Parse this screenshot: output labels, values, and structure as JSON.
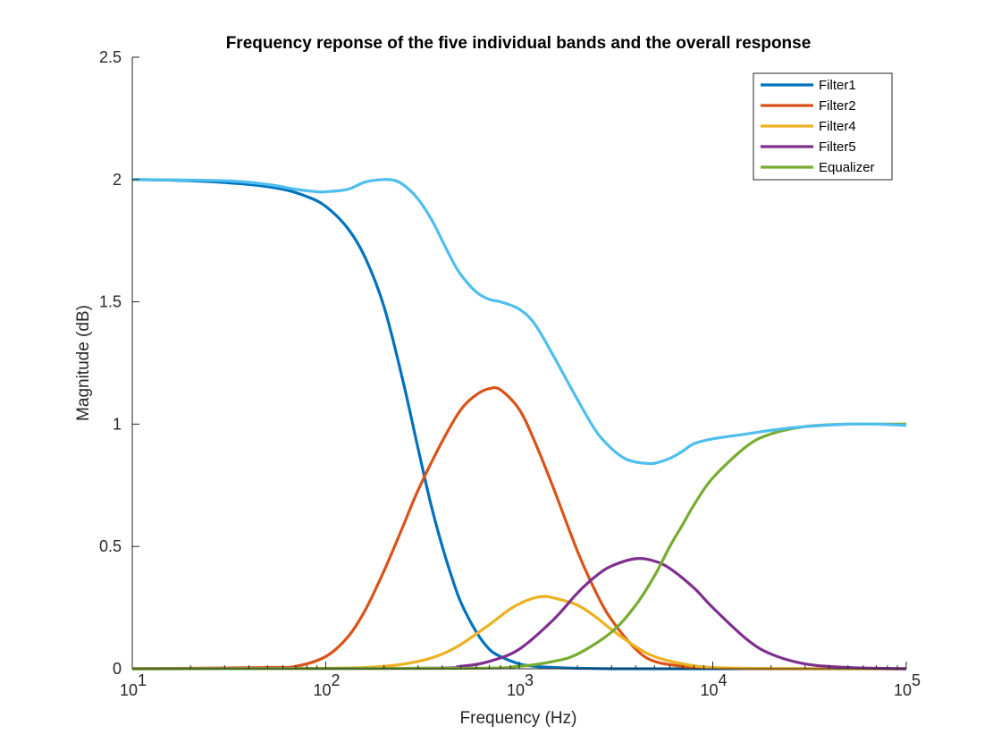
{
  "chart_data": {
    "type": "line",
    "title": "Frequency reponse of the five individual bands and the overall response",
    "xlabel": "Frequency (Hz)",
    "ylabel": "Magnitude (dB)",
    "xscale": "log",
    "xlim": [
      10,
      100000
    ],
    "ylim": [
      0,
      2.5
    ],
    "xticks": [
      10,
      100,
      1000,
      10000,
      100000
    ],
    "xtick_labels": [
      {
        "base": "10",
        "exp": "1"
      },
      {
        "base": "10",
        "exp": "2"
      },
      {
        "base": "10",
        "exp": "3"
      },
      {
        "base": "10",
        "exp": "4"
      },
      {
        "base": "10",
        "exp": "5"
      }
    ],
    "yticks": [
      0,
      0.5,
      1,
      1.5,
      2,
      2.5
    ],
    "ytick_labels": [
      "0",
      "0.5",
      "1",
      "1.5",
      "2",
      "2.5"
    ],
    "grid": false,
    "legend_placement": "top-right",
    "series": [
      {
        "name": "Filter1",
        "color": "#0072BD",
        "in_legend": true,
        "x": [
          10,
          20,
          40,
          60,
          80,
          100,
          130,
          160,
          200,
          250,
          300,
          350,
          400,
          450,
          500,
          600,
          700,
          800,
          1000,
          1200,
          1500,
          2000,
          3000,
          5000,
          10000,
          100000
        ],
        "y": [
          2.0,
          1.995,
          1.98,
          1.96,
          1.93,
          1.89,
          1.8,
          1.68,
          1.48,
          1.18,
          0.9,
          0.67,
          0.5,
          0.37,
          0.27,
          0.15,
          0.08,
          0.05,
          0.02,
          0.01,
          0.005,
          0.002,
          0,
          0,
          0,
          0
        ]
      },
      {
        "name": "Filter2",
        "color": "#D95319",
        "in_legend": true,
        "x": [
          10,
          50,
          70,
          100,
          130,
          160,
          200,
          250,
          300,
          400,
          500,
          600,
          700,
          800,
          1000,
          1200,
          1500,
          2000,
          2500,
          3000,
          4000,
          5000,
          7000,
          10000,
          20000,
          100000
        ],
        "y": [
          0,
          0.005,
          0.01,
          0.05,
          0.13,
          0.24,
          0.4,
          0.58,
          0.73,
          0.93,
          1.06,
          1.12,
          1.145,
          1.14,
          1.06,
          0.93,
          0.74,
          0.48,
          0.31,
          0.2,
          0.08,
          0.03,
          0.01,
          0.003,
          0,
          0
        ]
      },
      {
        "name": "Filter4",
        "color": "#EDB120",
        "in_legend": true,
        "x": [
          10,
          100,
          200,
          300,
          400,
          500,
          700,
          900,
          1100,
          1300,
          1500,
          2000,
          2500,
          3000,
          4000,
          5000,
          7000,
          10000,
          20000,
          100000
        ],
        "y": [
          0,
          0.002,
          0.01,
          0.03,
          0.06,
          0.1,
          0.18,
          0.245,
          0.28,
          0.295,
          0.29,
          0.26,
          0.21,
          0.16,
          0.09,
          0.05,
          0.02,
          0.005,
          0.001,
          0
        ]
      },
      {
        "name": "Filter5",
        "color": "#7E2F8E",
        "in_legend": true,
        "x": [
          10,
          300,
          500,
          700,
          1000,
          1500,
          2000,
          2500,
          3000,
          4000,
          5000,
          6000,
          8000,
          10000,
          15000,
          20000,
          30000,
          50000,
          100000
        ],
        "y": [
          0,
          0.002,
          0.01,
          0.03,
          0.08,
          0.2,
          0.31,
          0.38,
          0.42,
          0.45,
          0.44,
          0.41,
          0.33,
          0.25,
          0.12,
          0.06,
          0.02,
          0.005,
          0
        ]
      },
      {
        "name": "Equalizer",
        "color": "#77AC30",
        "in_legend": true,
        "x": [
          10,
          500,
          1000,
          1500,
          2000,
          3000,
          4000,
          5000,
          6000,
          7000,
          8000,
          10000,
          15000,
          20000,
          30000,
          50000,
          100000
        ],
        "y": [
          0,
          0.002,
          0.01,
          0.03,
          0.06,
          0.15,
          0.26,
          0.38,
          0.5,
          0.59,
          0.67,
          0.78,
          0.91,
          0.96,
          0.99,
          1.0,
          1.0
        ]
      },
      {
        "color": "#4DBEEE",
        "in_legend": false,
        "x": [
          10,
          30,
          50,
          70,
          90,
          100,
          130,
          160,
          200,
          230,
          260,
          300,
          350,
          400,
          450,
          500,
          600,
          700,
          800,
          1000,
          1200,
          1500,
          2000,
          2500,
          3000,
          3500,
          4000,
          4500,
          5000,
          6000,
          7000,
          8000,
          10000,
          15000,
          20000,
          30000,
          50000,
          70000,
          100000
        ],
        "y": [
          2.0,
          1.995,
          1.98,
          1.96,
          1.95,
          1.95,
          1.96,
          1.99,
          2.0,
          1.995,
          1.97,
          1.92,
          1.84,
          1.75,
          1.67,
          1.61,
          1.54,
          1.51,
          1.5,
          1.47,
          1.41,
          1.28,
          1.1,
          0.97,
          0.9,
          0.86,
          0.845,
          0.84,
          0.84,
          0.86,
          0.89,
          0.92,
          0.94,
          0.96,
          0.975,
          0.99,
          1.0,
          1.0,
          0.995
        ]
      }
    ]
  }
}
